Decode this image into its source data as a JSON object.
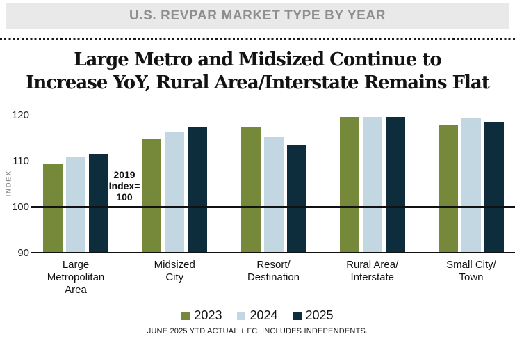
{
  "header": {
    "title": "U.S. REVPAR MARKET TYPE BY YEAR"
  },
  "title": {
    "text": "Large Metro and Midsized Continue to\nIncrease YoY, Rural Area/Interstate Remains Flat"
  },
  "annotation": {
    "text": "2019\nIndex=\n100"
  },
  "footer": {
    "note": "JUNE 2025 YTD ACTUAL + FC. INCLUDES INDEPENDENTS."
  },
  "colors": {
    "bar_2023": "#76883A",
    "bar_2024": "#C2D7E1",
    "bar_2025": "#0D2C3C",
    "header_bg": "#E9E9E9",
    "header_text": "#8E8E8E",
    "axis_line": "#111111"
  },
  "chart_data": {
    "type": "bar",
    "title": "Large Metro and Midsized Continue to Increase YoY, Rural Area/Interstate Remains Flat",
    "xlabel": "",
    "ylabel": "INDEX",
    "ylim": [
      90,
      122
    ],
    "yticks": [
      90,
      100,
      110,
      120
    ],
    "grid": false,
    "legend_position": "bottom",
    "reference_line": {
      "value": 100,
      "label": "2019 Index= 100"
    },
    "baseline": 90,
    "categories": [
      "Large\nMetropolitan\nArea",
      "Midsized\nCity",
      "Resort/\nDestination",
      "Rural Area/\nInterstate",
      "Small City/\nTown"
    ],
    "series": [
      {
        "name": "2023",
        "color": "#76883A",
        "values": [
          109.2,
          114.7,
          117.4,
          119.6,
          117.8
        ]
      },
      {
        "name": "2024",
        "color": "#C2D7E1",
        "values": [
          110.8,
          116.4,
          115.2,
          119.6,
          119.2
        ]
      },
      {
        "name": "2025",
        "color": "#0D2C3C",
        "values": [
          111.5,
          117.2,
          113.3,
          119.6,
          118.4
        ]
      }
    ]
  }
}
